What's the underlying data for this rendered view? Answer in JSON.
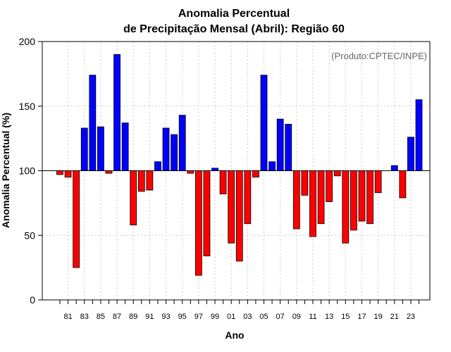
{
  "chart_data": {
    "type": "bar",
    "title_line1": "Anomalia Percentual",
    "title_line2": "de Precipitação Mensal (Abril): Região 60",
    "xlabel": "Ano",
    "ylabel": "Anomalia Percentual (%)",
    "credit": "(Produto:CPTEC/INPE)",
    "baseline": 100,
    "ylim": [
      0,
      200
    ],
    "yticks": [
      "0",
      "50",
      "100",
      "150",
      "200"
    ],
    "xtick_labels": [
      "81",
      "83",
      "85",
      "87",
      "89",
      "91",
      "93",
      "95",
      "97",
      "99",
      "01",
      "03",
      "05",
      "07",
      "09",
      "11",
      "13",
      "15",
      "17",
      "19",
      "21",
      "23"
    ],
    "categories": [
      "1980",
      "1981",
      "1982",
      "1983",
      "1984",
      "1985",
      "1986",
      "1987",
      "1988",
      "1989",
      "1990",
      "1991",
      "1992",
      "1993",
      "1994",
      "1995",
      "1996",
      "1997",
      "1998",
      "1999",
      "2000",
      "2001",
      "2002",
      "2003",
      "2004",
      "2005",
      "2006",
      "2007",
      "2008",
      "2009",
      "2010",
      "2011",
      "2012",
      "2013",
      "2014",
      "2015",
      "2016",
      "2017",
      "2018",
      "2019",
      "2020",
      "2021",
      "2022",
      "2023",
      "2024"
    ],
    "values": [
      97,
      95,
      25,
      133,
      174,
      134,
      98,
      190,
      137,
      58,
      84,
      85,
      107,
      133,
      128,
      143,
      98,
      19,
      34,
      102,
      82,
      44,
      30,
      59,
      95,
      174,
      107,
      140,
      136,
      55,
      81,
      49,
      59,
      76,
      96,
      44,
      54,
      61,
      59,
      83,
      100,
      104,
      79,
      126,
      155
    ],
    "colors": {
      "above": "#0000ff",
      "below": "#ff0000",
      "bar_stroke": "#000000",
      "grid": "#cccccc"
    }
  }
}
